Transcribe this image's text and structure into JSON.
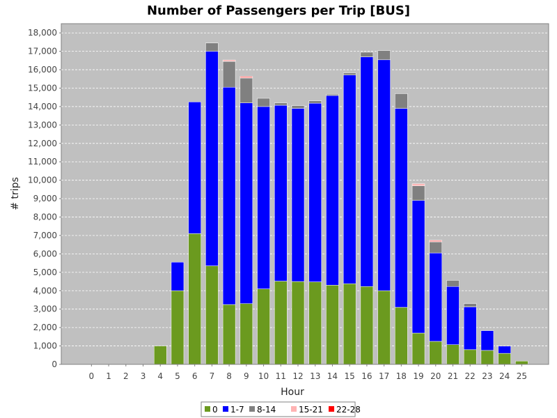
{
  "chart_data": {
    "type": "bar",
    "stacked": true,
    "title": "Number of Passengers per Trip [BUS]",
    "xlabel": "Hour",
    "ylabel": "# trips",
    "categories": [
      "0",
      "1",
      "2",
      "3",
      "4",
      "5",
      "6",
      "7",
      "8",
      "9",
      "10",
      "11",
      "12",
      "13",
      "14",
      "15",
      "16",
      "17",
      "18",
      "19",
      "20",
      "21",
      "22",
      "23",
      "24",
      "25"
    ],
    "ylim": [
      0,
      18500
    ],
    "yticks": [
      0,
      1000,
      2000,
      3000,
      4000,
      5000,
      6000,
      7000,
      8000,
      9000,
      10000,
      11000,
      12000,
      13000,
      14000,
      15000,
      16000,
      17000,
      18000
    ],
    "ytick_labels": [
      "0",
      "1,000",
      "2,000",
      "3,000",
      "4,000",
      "5,000",
      "6,000",
      "7,000",
      "8,000",
      "9,000",
      "10,000",
      "11,000",
      "12,000",
      "13,000",
      "14,000",
      "15,000",
      "16,000",
      "17,000",
      "18,000"
    ],
    "grid": true,
    "legend_position": "bottom",
    "series": [
      {
        "name": "0",
        "color": "#6b9a1f",
        "values": [
          0,
          0,
          0,
          0,
          1000,
          4000,
          7100,
          5350,
          3250,
          3300,
          4100,
          4520,
          4500,
          4480,
          4300,
          4380,
          4230,
          4000,
          3100,
          1700,
          1250,
          1070,
          800,
          760,
          600,
          180
        ]
      },
      {
        "name": "1-7",
        "color": "#0000ff",
        "values": [
          0,
          0,
          0,
          0,
          0,
          1550,
          7150,
          11650,
          11800,
          10900,
          9900,
          9550,
          9400,
          9700,
          10300,
          11330,
          12470,
          12540,
          10800,
          7200,
          4800,
          3160,
          2320,
          1070,
          390,
          0
        ]
      },
      {
        "name": "8-14",
        "color": "#808080",
        "values": [
          0,
          0,
          0,
          0,
          0,
          0,
          0,
          450,
          1400,
          1350,
          450,
          130,
          150,
          130,
          70,
          120,
          250,
          500,
          800,
          800,
          600,
          330,
          180,
          0,
          0,
          0
        ]
      },
      {
        "name": "15-21",
        "color": "#ffb3b3",
        "values": [
          0,
          0,
          0,
          0,
          0,
          0,
          0,
          0,
          50,
          50,
          0,
          0,
          0,
          0,
          0,
          0,
          0,
          0,
          0,
          80,
          60,
          0,
          0,
          0,
          0,
          0
        ]
      },
      {
        "name": "22-28",
        "color": "#ff0000",
        "values": [
          0,
          0,
          0,
          0,
          0,
          0,
          0,
          0,
          30,
          40,
          0,
          0,
          0,
          0,
          0,
          0,
          0,
          0,
          0,
          30,
          30,
          0,
          0,
          0,
          0,
          0
        ]
      }
    ]
  },
  "colors": {
    "plot_background": "#c0c0c0",
    "gridline": "#ffffff"
  }
}
